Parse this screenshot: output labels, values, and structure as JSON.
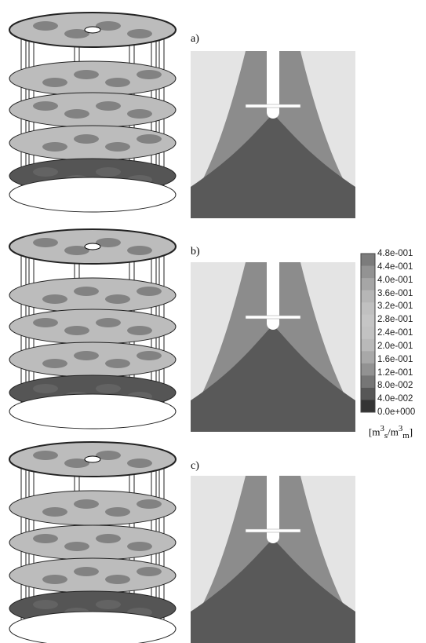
{
  "panels": [
    {
      "label": "a)"
    },
    {
      "label": "b)"
    },
    {
      "label": "c)"
    }
  ],
  "colorbar": {
    "labels": [
      "4.8e-001",
      "4.4e-001",
      "4.0e-001",
      "3.6e-001",
      "3.2e-001",
      "2.8e-001",
      "2.4e-001",
      "2.0e-001",
      "1.6e-001",
      "1.2e-001",
      "8.0e-002",
      "4.0e-002",
      "0.0e+000"
    ],
    "unit": {
      "open": "[m",
      "sup1": "3",
      "sub1": "s",
      "mid": "/m",
      "sup2": "3",
      "sub2": "m",
      "close": "]"
    }
  }
}
